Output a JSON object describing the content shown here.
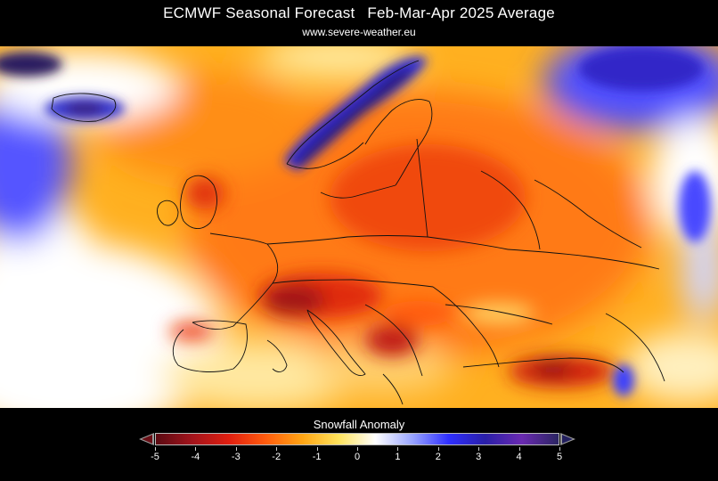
{
  "header": {
    "title_left": "ECMWF Seasonal Forecast",
    "title_right": "Feb-Mar-Apr 2025 Average",
    "subtitle": "www.severe-weather.eu"
  },
  "legend": {
    "title": "Snowfall Anomaly",
    "min": -5,
    "max": 5,
    "ticks": [
      "-5",
      "-4",
      "-3",
      "-2",
      "-1",
      "0",
      "1",
      "2",
      "3",
      "4",
      "5"
    ],
    "colors": [
      "#5a0a12",
      "#a3141c",
      "#e01f10",
      "#ff5c0e",
      "#ffa514",
      "#ffe45e",
      "#ffffff",
      "#9aa6ff",
      "#2f2fff",
      "#2a1fa8",
      "#6a2ab0",
      "#2b2562"
    ]
  }
}
